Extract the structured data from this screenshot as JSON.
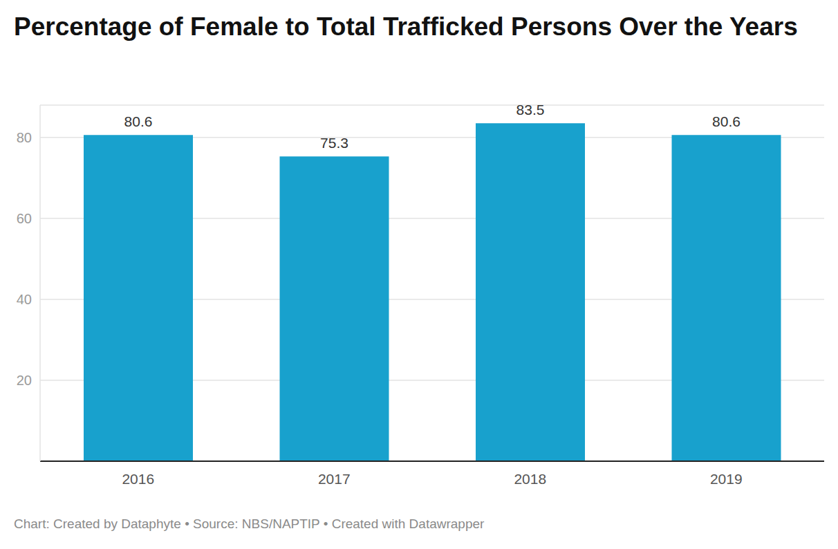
{
  "chart_data": {
    "type": "bar",
    "title": "Percentage of Female to Total Trafficked Persons Over the Years",
    "source": "Chart: Created by Dataphyte • Source: NBS/NAPTIP • Created with Datawrapper",
    "categories": [
      "2016",
      "2017",
      "2018",
      "2019"
    ],
    "values": [
      80.6,
      75.3,
      83.5,
      80.6
    ],
    "color": "#18a1cd",
    "ylim": [
      0,
      88
    ],
    "yticks": [
      20,
      40,
      60,
      80
    ],
    "grid": true,
    "data_labels": true
  }
}
